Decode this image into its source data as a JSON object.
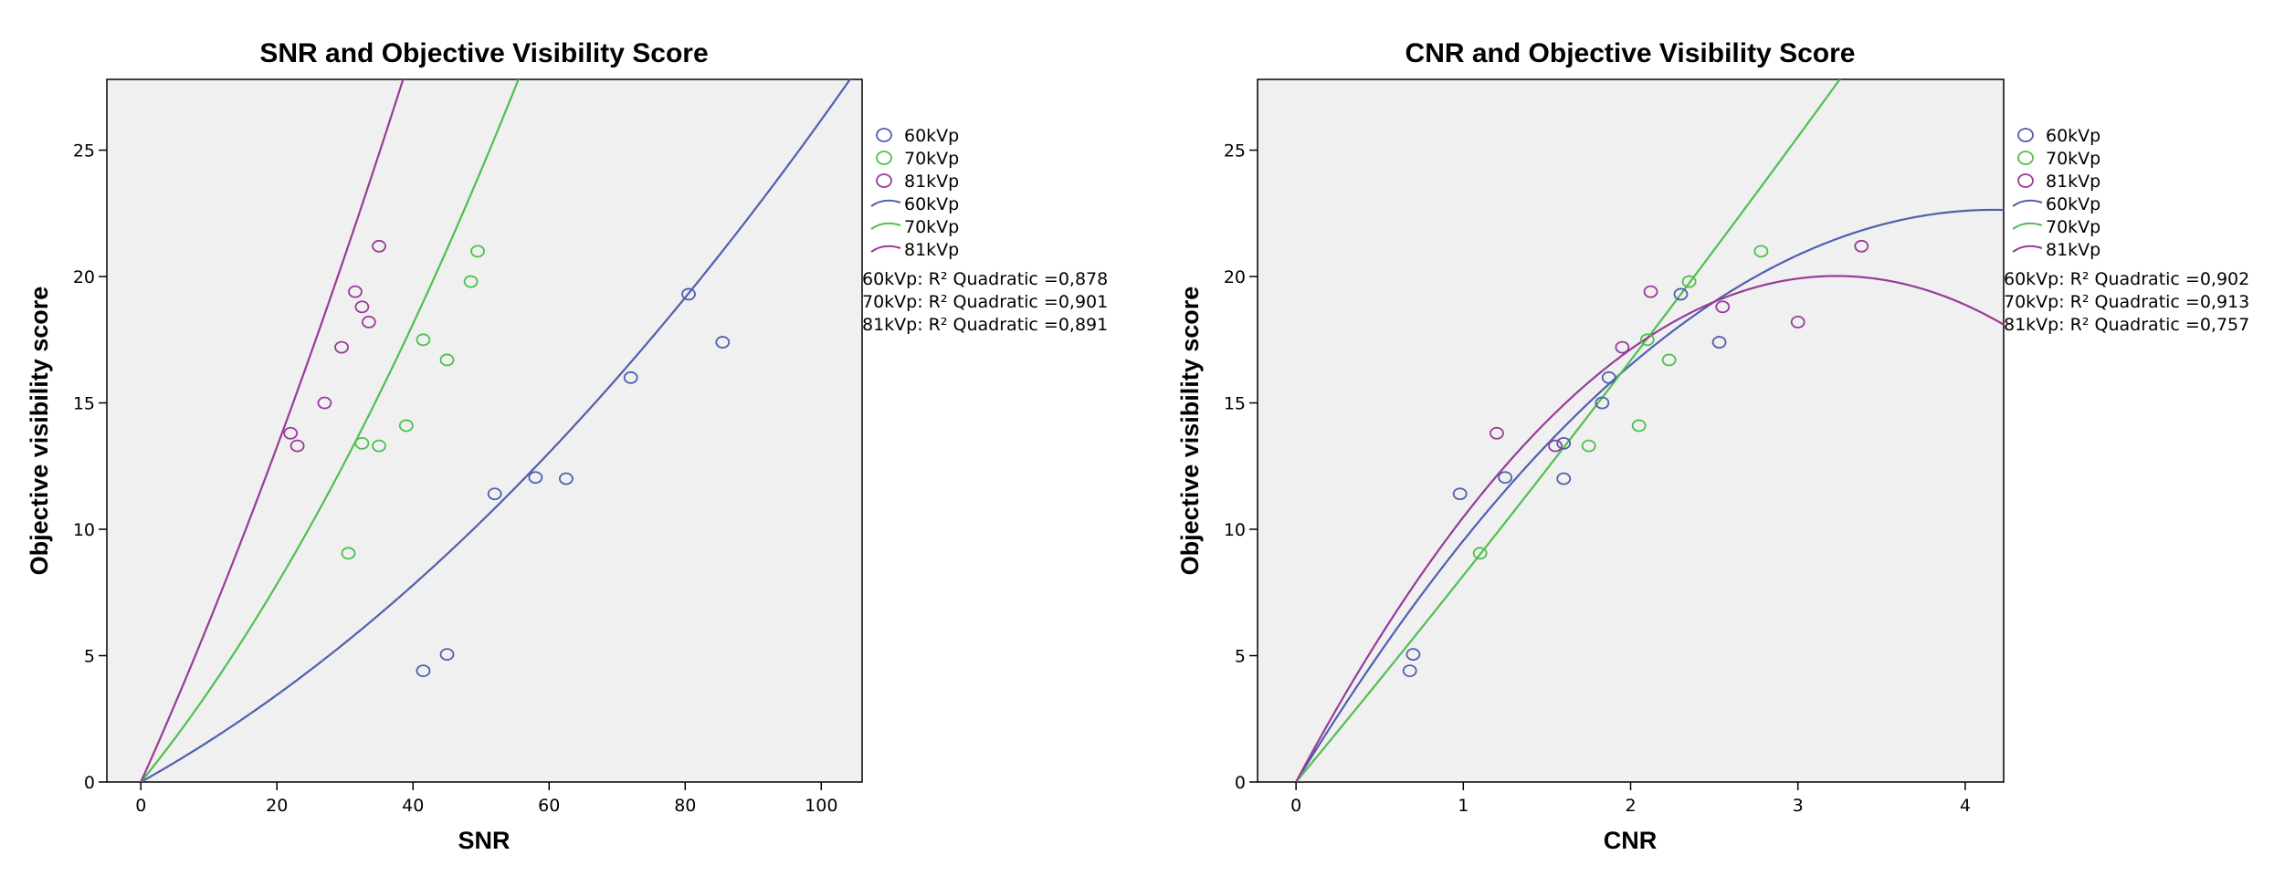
{
  "chart_data": [
    {
      "type": "scatter",
      "title": "SNR and Objective Visibility Score",
      "xlabel": "SNR",
      "ylabel": "Objective visibility score",
      "xlim": [
        -5,
        106
      ],
      "ylim": [
        0,
        27.8
      ],
      "xticks": [
        0,
        20,
        40,
        60,
        80,
        100
      ],
      "yticks": [
        0,
        5,
        10,
        15,
        20,
        25
      ],
      "legend_position": "right",
      "series": [
        {
          "name": "60kVp",
          "color": "#4f5faf",
          "points": [
            [
              41.5,
              4.4
            ],
            [
              45,
              5.05
            ],
            [
              52,
              11.4
            ],
            [
              58,
              12.05
            ],
            [
              62.5,
              12
            ],
            [
              72,
              16
            ],
            [
              80.5,
              19.3
            ],
            [
              85.5,
              17.4
            ]
          ]
        },
        {
          "name": "70kVp",
          "color": "#4fbf4f",
          "points": [
            [
              30.5,
              9.05
            ],
            [
              32.5,
              13.4
            ],
            [
              35,
              13.3
            ],
            [
              39,
              14.1
            ],
            [
              41.5,
              17.5
            ],
            [
              45,
              16.7
            ],
            [
              48.5,
              19.8
            ],
            [
              49.5,
              21
            ]
          ]
        },
        {
          "name": "81kVp",
          "color": "#973c97",
          "points": [
            [
              22,
              13.8
            ],
            [
              23,
              13.3
            ],
            [
              27,
              15
            ],
            [
              29.5,
              17.2
            ],
            [
              31.5,
              19.4
            ],
            [
              32.5,
              18.8
            ],
            [
              33.5,
              18.2
            ],
            [
              35,
              21.2
            ]
          ]
        }
      ],
      "fits": [
        {
          "name": "60kVp",
          "color": "#4f5faf",
          "coef": [
            0,
            0.15,
            0.00112
          ]
        },
        {
          "name": "70kVp",
          "color": "#4fbf4f",
          "coef": [
            0,
            0.33,
            0.00308
          ]
        },
        {
          "name": "81kVp",
          "color": "#973c97",
          "coef": [
            0,
            0.6,
            0.00315
          ]
        }
      ],
      "fit_labels": [
        "60kVp: R² Quadratic =0,878",
        "70kVp: R² Quadratic =0,901",
        "81kVp: R² Quadratic =0,891"
      ]
    },
    {
      "type": "scatter",
      "title": "CNR and Objective Visibility Score",
      "xlabel": "CNR",
      "ylabel": "Objective visibility score",
      "xlim": [
        -0.23,
        4.23
      ],
      "ylim": [
        0,
        27.8
      ],
      "xticks": [
        0,
        1,
        2,
        3,
        4
      ],
      "yticks": [
        0,
        5,
        10,
        15,
        20,
        25
      ],
      "legend_position": "right",
      "series": [
        {
          "name": "60kVp",
          "color": "#4f5faf",
          "points": [
            [
              0.68,
              4.4
            ],
            [
              0.7,
              5.05
            ],
            [
              0.98,
              11.4
            ],
            [
              1.25,
              12.05
            ],
            [
              1.6,
              12
            ],
            [
              1.6,
              13.4
            ],
            [
              1.83,
              15
            ],
            [
              1.87,
              16
            ],
            [
              2.3,
              19.3
            ],
            [
              2.53,
              17.4
            ]
          ]
        },
        {
          "name": "70kVp",
          "color": "#4fbf4f",
          "points": [
            [
              1.1,
              9.05
            ],
            [
              1.75,
              13.3
            ],
            [
              2.05,
              14.1
            ],
            [
              2.1,
              17.5
            ],
            [
              2.23,
              16.7
            ],
            [
              2.35,
              19.8
            ],
            [
              2.78,
              21
            ]
          ]
        },
        {
          "name": "81kVp",
          "color": "#973c97",
          "points": [
            [
              1.2,
              13.8
            ],
            [
              1.55,
              13.3
            ],
            [
              1.95,
              17.2
            ],
            [
              2.12,
              19.4
            ],
            [
              2.55,
              18.8
            ],
            [
              3.0,
              18.2
            ],
            [
              3.38,
              21.2
            ]
          ]
        }
      ],
      "fits": [
        {
          "name": "60kVp",
          "color": "#4f5faf",
          "coef": [
            0,
            10.85,
            -1.3
          ]
        },
        {
          "name": "70kVp",
          "color": "#4fbf4f",
          "coef": [
            0,
            8.0,
            0.17
          ]
        },
        {
          "name": "81kVp",
          "color": "#973c97",
          "coef": [
            0,
            12.4,
            -1.92
          ]
        }
      ],
      "fit_labels": [
        "60kVp: R² Quadratic =0,902",
        "70kVp: R² Quadratic =0,913",
        "81kVp: R² Quadratic =0,757"
      ]
    }
  ]
}
